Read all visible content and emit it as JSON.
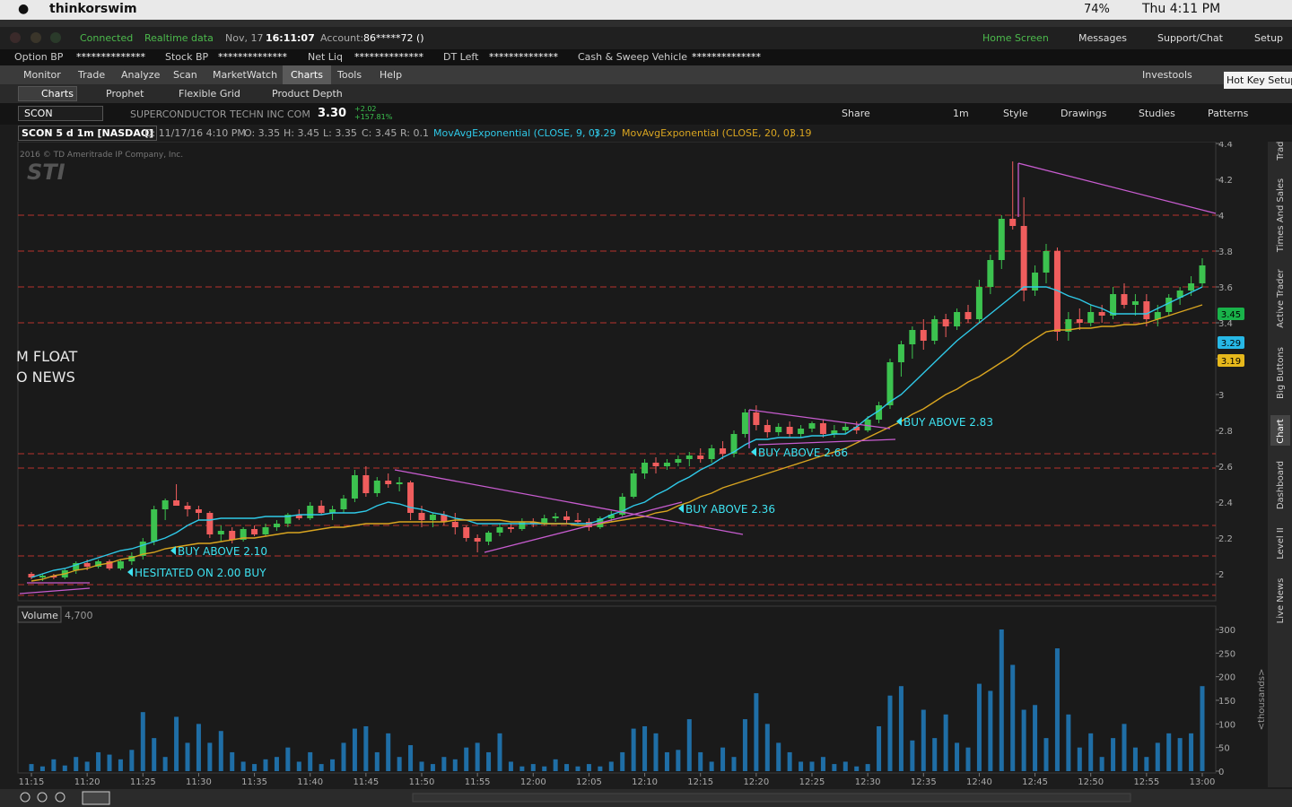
{
  "menubar": {
    "app": "thinkorswim",
    "battery": "74%",
    "clock": "Thu 4:11 PM"
  },
  "status": {
    "connected": "Connected",
    "realtime": "Realtime data",
    "date": "Nov, 17",
    "time": "16:11:07",
    "account_label": "Account:",
    "account": "86*****72 ()",
    "home": "Home Screen",
    "messages": "Messages",
    "support": "Support/Chat",
    "setup": "Setup"
  },
  "balances": [
    {
      "label": "Option BP",
      "value": "**************"
    },
    {
      "label": "Stock BP",
      "value": "**************"
    },
    {
      "label": "Net Liq",
      "value": "**************"
    },
    {
      "label": "DT Left",
      "value": "**************"
    },
    {
      "label": "Cash & Sweep Vehicle",
      "value": "**************"
    }
  ],
  "tabs": [
    "Monitor",
    "Trade",
    "Analyze",
    "Scan",
    "MarketWatch",
    "Charts",
    "Tools",
    "Help"
  ],
  "investools": "Investools",
  "tooltip": "Hot Key Setup",
  "subtabs": [
    "Charts",
    "Prophet",
    "Flexible Grid",
    "Product Depth"
  ],
  "symbol_bar": {
    "symbol": "SCON",
    "description": "SUPERCONDUCTOR TECHN INC COM",
    "last": "3.30",
    "change": "+2.02",
    "change_pct": "+157.81%",
    "period": "1m",
    "buttons": [
      "Share",
      "Style",
      "Drawings",
      "Studies",
      "Patterns"
    ]
  },
  "chart_header": {
    "title": "SCON 5 d 1m [NASDAQ]",
    "date": "D: 11/17/16 4:10 PM",
    "open": "O: 3.35",
    "high": "H: 3.45",
    "low": "L: 3.35",
    "close": "C: 3.45",
    "range": "R: 0.1",
    "ema9_value": "3.29",
    "ema20_value": "3.19"
  },
  "watermark": {
    "copyright": "2016 © TD Ameritrade IP Company, Inc.",
    "logo": "STI"
  },
  "annotations": [
    "BUY ABOVE 2.10",
    "HESITATED ON 2.00 BUY",
    "BUY ABOVE 2.36",
    "BUY ABOVE 2.66",
    "BUY ABOVE 2.83",
    "M FLOAT",
    "O NEWS"
  ],
  "side_tabs": [
    "Trade",
    "Times And Sales",
    "Active Trader",
    "Big Buttons",
    "Chart",
    "Dashboard",
    "Level II",
    "Live News"
  ],
  "chart_data": {
    "type": "candlestick",
    "categories": [
      "11:15",
      null,
      null,
      null,
      null,
      "11:20",
      null,
      null,
      null,
      null,
      "11:25",
      null,
      null,
      null,
      null,
      "11:30",
      null,
      null,
      null,
      null,
      "11:35",
      null,
      null,
      null,
      null,
      "11:40",
      null,
      null,
      null,
      null,
      "11:45",
      null,
      null,
      null,
      null,
      "11:50",
      null,
      null,
      null,
      null,
      "11:55",
      null,
      null,
      null,
      null,
      "12:00",
      null,
      null,
      null,
      null,
      "12:05",
      null,
      null,
      null,
      null,
      "12:10",
      null,
      null,
      null,
      null,
      "12:15",
      null,
      null,
      null,
      null,
      "12:20",
      null,
      null,
      null,
      null,
      "12:25",
      null,
      null,
      null,
      null,
      "12:30",
      null,
      null,
      null,
      null,
      "12:35",
      null,
      null,
      null,
      null,
      "12:40",
      null,
      null,
      null,
      null,
      "12:45",
      null,
      null,
      null,
      null,
      "12:50",
      null,
      null,
      null,
      null,
      "12:55",
      null,
      null,
      null,
      null,
      "13:00"
    ],
    "open": [
      2.0,
      1.98,
      1.99,
      1.98,
      2.02,
      2.06,
      2.04,
      2.07,
      2.03,
      2.07,
      2.1,
      2.18,
      2.36,
      2.41,
      2.38,
      2.36,
      2.34,
      2.22,
      2.24,
      2.19,
      2.25,
      2.22,
      2.26,
      2.28,
      2.33,
      2.31,
      2.38,
      2.34,
      2.36,
      2.42,
      2.55,
      2.45,
      2.52,
      2.5,
      2.51,
      2.34,
      2.3,
      2.33,
      2.29,
      2.26,
      2.2,
      2.18,
      2.23,
      2.26,
      2.25,
      2.29,
      2.28,
      2.31,
      2.32,
      2.3,
      2.29,
      2.26,
      2.31,
      2.33,
      2.43,
      2.56,
      2.62,
      2.6,
      2.62,
      2.64,
      2.66,
      2.64,
      2.7,
      2.67,
      2.78,
      2.9,
      2.83,
      2.79,
      2.82,
      2.78,
      2.81,
      2.84,
      2.78,
      2.8,
      2.82,
      2.8,
      2.86,
      2.94,
      3.18,
      3.28,
      3.36,
      3.3,
      3.42,
      3.38,
      3.46,
      3.42,
      3.6,
      3.75,
      3.98,
      3.94,
      3.58,
      3.68,
      3.8,
      3.35,
      3.42,
      3.4,
      3.46,
      3.44,
      3.56,
      3.5,
      3.52,
      3.42,
      3.46,
      3.54,
      3.58,
      3.62
    ],
    "high": [
      2.01,
      2.0,
      2.0,
      2.03,
      2.07,
      2.08,
      2.08,
      2.08,
      2.08,
      2.12,
      2.2,
      2.38,
      2.42,
      2.5,
      2.4,
      2.38,
      2.35,
      2.27,
      2.26,
      2.26,
      2.27,
      2.28,
      2.3,
      2.34,
      2.36,
      2.4,
      2.41,
      2.38,
      2.44,
      2.58,
      2.6,
      2.54,
      2.56,
      2.54,
      2.52,
      2.38,
      2.34,
      2.35,
      2.34,
      2.27,
      2.22,
      2.24,
      2.28,
      2.28,
      2.31,
      2.31,
      2.33,
      2.34,
      2.35,
      2.34,
      2.31,
      2.32,
      2.35,
      2.45,
      2.58,
      2.64,
      2.65,
      2.64,
      2.66,
      2.68,
      2.7,
      2.72,
      2.74,
      2.8,
      2.92,
      2.94,
      2.86,
      2.84,
      2.85,
      2.83,
      2.85,
      2.86,
      2.83,
      2.84,
      2.85,
      2.88,
      2.96,
      3.2,
      3.3,
      3.38,
      3.42,
      3.44,
      3.45,
      3.48,
      3.5,
      3.64,
      3.78,
      4.0,
      4.3,
      4.1,
      3.72,
      3.84,
      3.82,
      3.46,
      3.48,
      3.5,
      3.5,
      3.6,
      3.62,
      3.56,
      3.56,
      3.5,
      3.56,
      3.6,
      3.66,
      3.76
    ],
    "low": [
      1.97,
      1.96,
      1.97,
      1.97,
      2.0,
      2.02,
      2.03,
      2.02,
      2.02,
      2.05,
      2.08,
      2.16,
      2.3,
      2.38,
      2.32,
      2.3,
      2.2,
      2.18,
      2.17,
      2.18,
      2.21,
      2.21,
      2.24,
      2.26,
      2.3,
      2.3,
      2.33,
      2.3,
      2.34,
      2.4,
      2.43,
      2.43,
      2.48,
      2.46,
      2.3,
      2.26,
      2.26,
      2.27,
      2.22,
      2.18,
      2.12,
      2.16,
      2.21,
      2.23,
      2.24,
      2.26,
      2.27,
      2.29,
      2.28,
      2.28,
      2.24,
      2.25,
      2.29,
      2.32,
      2.42,
      2.53,
      2.56,
      2.58,
      2.6,
      2.6,
      2.62,
      2.62,
      2.64,
      2.65,
      2.76,
      2.8,
      2.76,
      2.77,
      2.76,
      2.76,
      2.79,
      2.76,
      2.76,
      2.78,
      2.78,
      2.79,
      2.84,
      2.92,
      3.1,
      3.2,
      3.25,
      3.28,
      3.32,
      3.36,
      3.4,
      3.4,
      3.56,
      3.7,
      3.92,
      3.52,
      3.55,
      3.62,
      3.3,
      3.3,
      3.36,
      3.38,
      3.4,
      3.42,
      3.48,
      3.44,
      3.38,
      3.38,
      3.44,
      3.5,
      3.55,
      3.6
    ],
    "close": [
      1.98,
      1.99,
      1.98,
      2.02,
      2.06,
      2.04,
      2.07,
      2.03,
      2.07,
      2.1,
      2.18,
      2.36,
      2.41,
      2.38,
      2.36,
      2.34,
      2.22,
      2.24,
      2.19,
      2.25,
      2.22,
      2.26,
      2.28,
      2.33,
      2.31,
      2.38,
      2.34,
      2.36,
      2.42,
      2.55,
      2.45,
      2.52,
      2.5,
      2.51,
      2.34,
      2.3,
      2.33,
      2.29,
      2.26,
      2.2,
      2.18,
      2.23,
      2.26,
      2.25,
      2.29,
      2.28,
      2.31,
      2.32,
      2.3,
      2.29,
      2.26,
      2.31,
      2.33,
      2.43,
      2.56,
      2.62,
      2.6,
      2.62,
      2.64,
      2.66,
      2.64,
      2.7,
      2.67,
      2.78,
      2.9,
      2.83,
      2.79,
      2.82,
      2.78,
      2.81,
      2.84,
      2.78,
      2.8,
      2.82,
      2.8,
      2.86,
      2.94,
      3.18,
      3.28,
      3.36,
      3.3,
      3.42,
      3.38,
      3.46,
      3.42,
      3.6,
      3.75,
      3.98,
      3.94,
      3.58,
      3.68,
      3.8,
      3.35,
      3.42,
      3.4,
      3.46,
      3.44,
      3.56,
      3.5,
      3.52,
      3.42,
      3.46,
      3.54,
      3.58,
      3.62,
      3.72
    ],
    "up_color": "#3cc24f",
    "down_color": "#f05d5d",
    "series": [
      {
        "name": "MovAvgExponential (CLOSE, 9, 0)",
        "color": "#2fc9e8",
        "values": [
          1.98,
          2.0,
          2.02,
          2.03,
          2.05,
          2.07,
          2.09,
          2.11,
          2.13,
          2.14,
          2.16,
          2.18,
          2.2,
          2.23,
          2.27,
          2.3,
          2.3,
          2.31,
          2.31,
          2.31,
          2.31,
          2.32,
          2.32,
          2.32,
          2.33,
          2.33,
          2.33,
          2.34,
          2.34,
          2.34,
          2.35,
          2.38,
          2.4,
          2.39,
          2.37,
          2.36,
          2.34,
          2.33,
          2.31,
          2.3,
          2.28,
          2.28,
          2.28,
          2.28,
          2.28,
          2.28,
          2.28,
          2.28,
          2.28,
          2.28,
          2.28,
          2.3,
          2.33,
          2.35,
          2.38,
          2.4,
          2.44,
          2.47,
          2.51,
          2.54,
          2.58,
          2.61,
          2.65,
          2.68,
          2.72,
          2.75,
          2.75,
          2.76,
          2.76,
          2.76,
          2.77,
          2.77,
          2.78,
          2.78,
          2.82,
          2.87,
          2.91,
          2.96,
          3.0,
          3.06,
          3.12,
          3.18,
          3.24,
          3.3,
          3.35,
          3.4,
          3.45,
          3.5,
          3.55,
          3.6,
          3.6,
          3.6,
          3.58,
          3.55,
          3.53,
          3.5,
          3.48,
          3.45,
          3.45,
          3.45,
          3.45,
          3.48,
          3.51,
          3.54,
          3.57,
          3.6
        ]
      },
      {
        "name": "MovAvgExponential (CLOSE, 20, 0)",
        "color": "#d9a520",
        "values": [
          1.96,
          1.97,
          1.99,
          2.0,
          2.02,
          2.03,
          2.05,
          2.06,
          2.08,
          2.09,
          2.11,
          2.12,
          2.14,
          2.15,
          2.16,
          2.17,
          2.17,
          2.18,
          2.19,
          2.2,
          2.2,
          2.21,
          2.22,
          2.23,
          2.23,
          2.24,
          2.25,
          2.26,
          2.26,
          2.27,
          2.28,
          2.28,
          2.28,
          2.29,
          2.29,
          2.29,
          2.29,
          2.29,
          2.3,
          2.3,
          2.3,
          2.3,
          2.3,
          2.29,
          2.29,
          2.29,
          2.28,
          2.28,
          2.28,
          2.27,
          2.27,
          2.28,
          2.29,
          2.3,
          2.31,
          2.32,
          2.34,
          2.35,
          2.38,
          2.4,
          2.43,
          2.45,
          2.48,
          2.5,
          2.52,
          2.54,
          2.56,
          2.58,
          2.6,
          2.62,
          2.64,
          2.66,
          2.68,
          2.7,
          2.73,
          2.76,
          2.79,
          2.82,
          2.85,
          2.89,
          2.92,
          2.96,
          3.0,
          3.03,
          3.07,
          3.1,
          3.14,
          3.18,
          3.22,
          3.27,
          3.31,
          3.35,
          3.36,
          3.36,
          3.37,
          3.37,
          3.38,
          3.38,
          3.39,
          3.39,
          3.4,
          3.42,
          3.44,
          3.46,
          3.48,
          3.5
        ]
      }
    ],
    "levels": [
      4,
      3.8,
      3.6,
      3.4,
      2.67,
      2.59,
      2.27,
      2.1,
      1.94,
      1.88
    ],
    "level_color": "#b8322c",
    "price_bubbles": [
      {
        "value": 3.45,
        "color": "#19b34a"
      },
      {
        "value": 3.29,
        "color": "#27b8e6"
      },
      {
        "value": 3.19,
        "color": "#e6b81c"
      }
    ],
    "ylim": [
      1.86,
      4.46
    ],
    "yticks": [
      2,
      2.2,
      2.4,
      2.6,
      2.8,
      3,
      3.2,
      3.4,
      3.6,
      3.8,
      4,
      4.2,
      4.4
    ],
    "volume": {
      "label": "Volume",
      "readout": "4,700",
      "unit": "<thousands>",
      "color": "#1f6ea6",
      "values": [
        15,
        10,
        25,
        12,
        30,
        20,
        40,
        35,
        25,
        45,
        125,
        70,
        30,
        115,
        60,
        100,
        60,
        85,
        40,
        20,
        15,
        25,
        30,
        50,
        20,
        40,
        15,
        25,
        60,
        90,
        95,
        40,
        80,
        30,
        55,
        20,
        15,
        30,
        25,
        50,
        60,
        40,
        80,
        20,
        10,
        15,
        10,
        25,
        15,
        10,
        15,
        10,
        20,
        40,
        90,
        95,
        80,
        40,
        45,
        110,
        40,
        20,
        50,
        30,
        110,
        165,
        100,
        60,
        40,
        20,
        20,
        30,
        15,
        20,
        10,
        15,
        95,
        160,
        180,
        65,
        130,
        70,
        120,
        60,
        50,
        185,
        170,
        300,
        225,
        130,
        140,
        70,
        260,
        120,
        50,
        80,
        30,
        70,
        100,
        50,
        30,
        60,
        80,
        70,
        80,
        180
      ],
      "ylim": [
        0,
        300
      ],
      "yticks": [
        0,
        50,
        100,
        150,
        200,
        250,
        300
      ]
    }
  }
}
